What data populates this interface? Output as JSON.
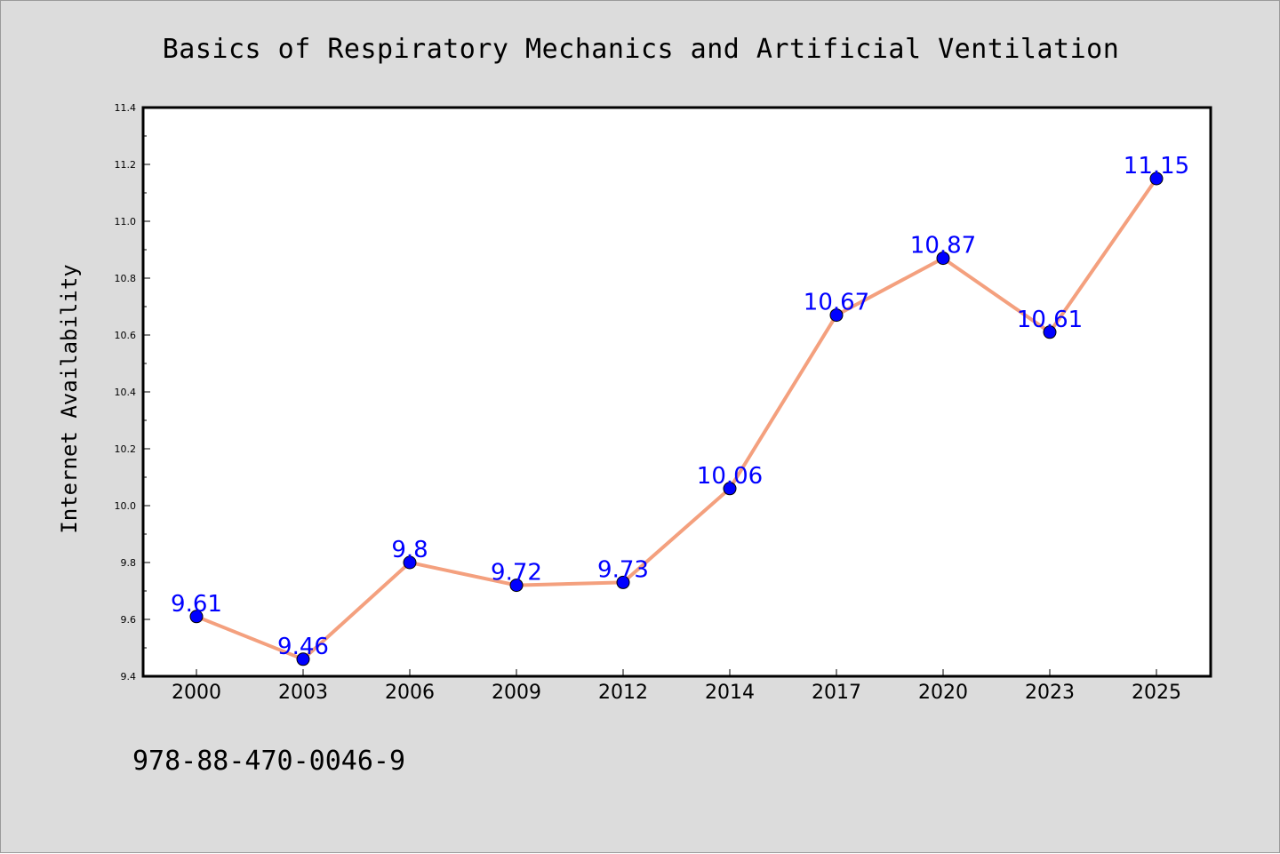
{
  "chart_data": {
    "type": "line",
    "title": "Basics of Respiratory Mechanics and Artificial Ventilation",
    "xlabel": "",
    "ylabel": "Internet Availability",
    "categories": [
      "2000",
      "2003",
      "2006",
      "2009",
      "2012",
      "2014",
      "2017",
      "2020",
      "2023",
      "2025"
    ],
    "series": [
      {
        "values": [
          9.61,
          9.46,
          9.8,
          9.72,
          9.73,
          10.06,
          10.67,
          10.87,
          10.61,
          11.15
        ],
        "labels": [
          "9.61",
          "9.46",
          "9.8",
          "9.72",
          "9.73",
          "10.06",
          "10.67",
          "10.87",
          "10.61",
          "11.15"
        ]
      }
    ],
    "ylim": [
      9.4,
      11.4
    ],
    "yticks": [
      9.4,
      9.6,
      9.8,
      10.0,
      10.2,
      10.4,
      10.6,
      10.8,
      11.0,
      11.2,
      11.4
    ],
    "ytick_labels": [
      "9.4",
      "9.6",
      "9.8",
      "10.0",
      "10.2",
      "10.4",
      "10.6",
      "10.8",
      "11.0",
      "11.2",
      "11.4"
    ],
    "grid": false,
    "legend": "none",
    "colors": {
      "line": "#f4a07e",
      "marker": "#0000ff",
      "data_label": "#0000ff",
      "background": "#dcdcdc",
      "plot_background": "#ffffff"
    }
  },
  "footer": {
    "text": "978-88-470-0046-9"
  }
}
